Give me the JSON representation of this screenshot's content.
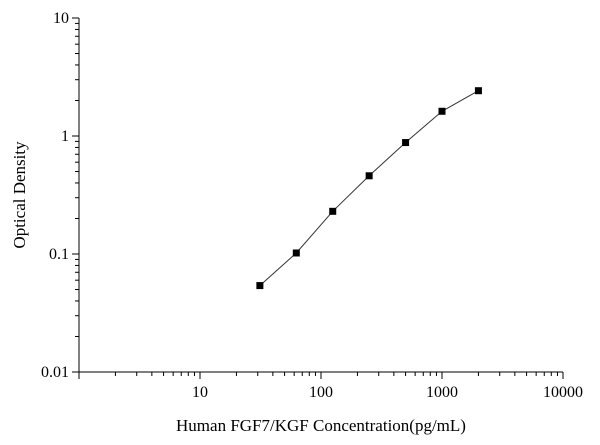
{
  "chart_data": {
    "type": "scatter",
    "xlabel": "Human FGF7/KGF Concentration(pg/mL)",
    "ylabel": "Optical Density",
    "x_scale": "log",
    "y_scale": "log",
    "xlim": [
      1,
      10000
    ],
    "ylim": [
      0.01,
      10
    ],
    "x_ticks": [
      10,
      100,
      1000,
      10000
    ],
    "x_tick_labels": [
      "10",
      "100",
      "1000",
      "10000"
    ],
    "y_ticks": [
      0.01,
      0.1,
      1,
      10
    ],
    "y_tick_labels": [
      "0.01",
      "0.1",
      "1",
      "10"
    ],
    "grid": false,
    "legend": "none",
    "series": [
      {
        "x": [
          31.25,
          62.5,
          125,
          250,
          500,
          1000,
          2000
        ],
        "y": [
          0.054,
          0.102,
          0.23,
          0.46,
          0.88,
          1.62,
          2.42
        ],
        "marker": "square",
        "color": "#000000",
        "line": true
      }
    ]
  }
}
